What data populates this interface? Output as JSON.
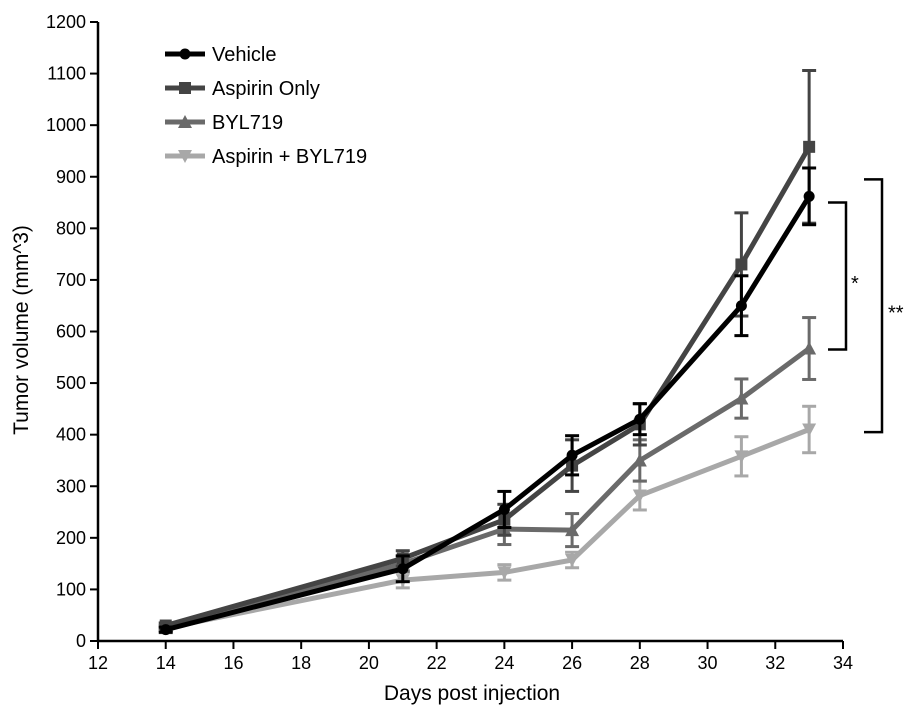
{
  "chart_data": {
    "type": "line",
    "title": "",
    "xlabel": "Days post injection",
    "ylabel": "Tumor volume (mm^3)",
    "xlim": [
      12,
      34
    ],
    "ylim": [
      0,
      1200
    ],
    "x_ticks": [
      12,
      14,
      16,
      18,
      20,
      22,
      24,
      26,
      28,
      30,
      32,
      34
    ],
    "y_ticks": [
      0,
      100,
      200,
      300,
      400,
      500,
      600,
      700,
      800,
      900,
      1000,
      1100,
      1200
    ],
    "x": [
      14,
      21,
      24,
      26,
      28,
      31,
      33
    ],
    "grid": false,
    "legend_position": "top-left",
    "series": [
      {
        "name": "Vehicle",
        "marker": "circle",
        "color": "#000000",
        "values": [
          22,
          140,
          255,
          360,
          430,
          650,
          862
        ],
        "errors": [
          5,
          25,
          35,
          38,
          30,
          58,
          55
        ]
      },
      {
        "name": "Aspirin Only",
        "marker": "square",
        "color": "#444444",
        "values": [
          30,
          160,
          235,
          340,
          420,
          730,
          958
        ],
        "errors": [
          5,
          15,
          30,
          50,
          40,
          100,
          148
        ]
      },
      {
        "name": "BYL719",
        "marker": "triangle-up",
        "color": "#6a6a6a",
        "values": [
          25,
          150,
          217,
          215,
          350,
          470,
          567
        ],
        "errors": [
          5,
          15,
          30,
          32,
          40,
          38,
          60
        ]
      },
      {
        "name": "Aspirin + BYL719",
        "marker": "triangle-down",
        "color": "#a8a8a8",
        "values": [
          25,
          118,
          133,
          157,
          282,
          358,
          410
        ],
        "errors": [
          5,
          15,
          15,
          15,
          28,
          38,
          45
        ]
      }
    ],
    "annotations": [
      {
        "label": "*",
        "y_range": [
          565,
          850
        ]
      },
      {
        "label": "**",
        "y_range": [
          405,
          895
        ]
      }
    ]
  }
}
